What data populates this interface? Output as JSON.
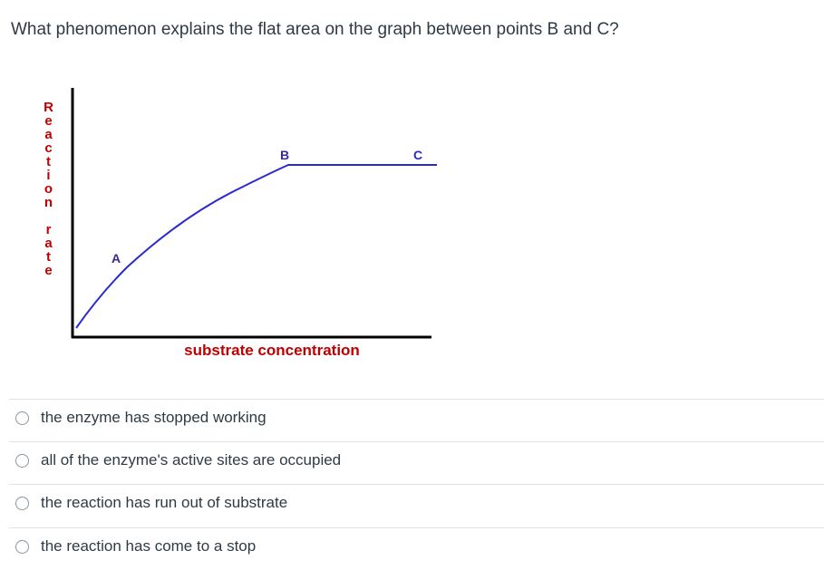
{
  "question": "What phenomenon explains the flat area on the graph between points B and C?",
  "figure": {
    "y_axis_label": "Reaction rate",
    "x_axis_label": "substrate concentration",
    "point_labels": [
      "A",
      "B",
      "C"
    ]
  },
  "options": [
    "the enzyme has stopped working",
    "all of the enzyme's active sites are occupied",
    "the reaction has run out of substrate",
    "the reaction has come to a stop"
  ]
}
